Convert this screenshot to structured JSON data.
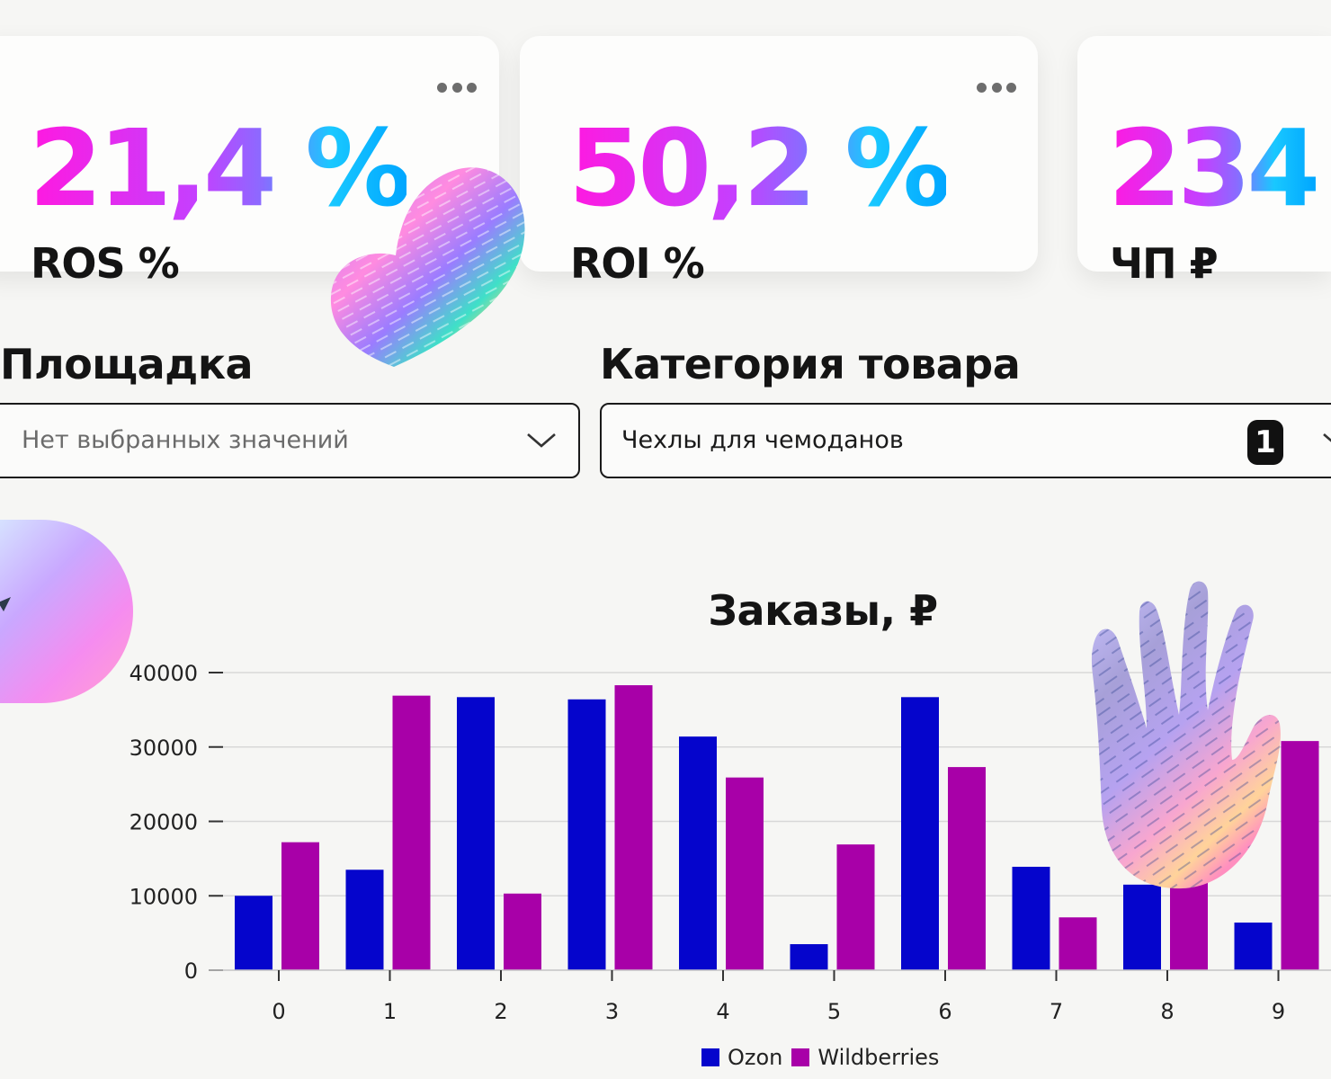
{
  "kpis": [
    {
      "value": "21,4 %",
      "label": "ROS %"
    },
    {
      "value": "50,2 %",
      "label": "ROI %"
    },
    {
      "value": "234",
      "label": "ЧП ₽"
    }
  ],
  "filters": {
    "platform": {
      "title": "Площадка",
      "placeholder": "Нет выбранных значений"
    },
    "category": {
      "title": "Категория товара",
      "value": "Чехлы для чемоданов",
      "count": "1"
    }
  },
  "colors": {
    "ozon": "#0505cc",
    "wildberries": "#a800a8",
    "gradient": [
      "#ff19e0",
      "#c440ff",
      "#19c8ff"
    ]
  },
  "chart_data": {
    "type": "bar",
    "title": "Заказы, ₽",
    "categories": [
      "0",
      "1",
      "2",
      "3",
      "4",
      "5",
      "6",
      "7",
      "8",
      "9"
    ],
    "series": [
      {
        "name": "Ozon",
        "values": [
          10000,
          13500,
          36700,
          36400,
          31400,
          3500,
          36700,
          13900,
          11500,
          6400
        ]
      },
      {
        "name": "Wildberries",
        "values": [
          17200,
          36900,
          10300,
          38300,
          25900,
          16900,
          27300,
          7100,
          12600,
          30800
        ]
      }
    ],
    "yticks": [
      0,
      10000,
      20000,
      30000,
      40000
    ],
    "ylim": [
      0,
      40000
    ],
    "grid": true,
    "legend": "bottom-center"
  }
}
